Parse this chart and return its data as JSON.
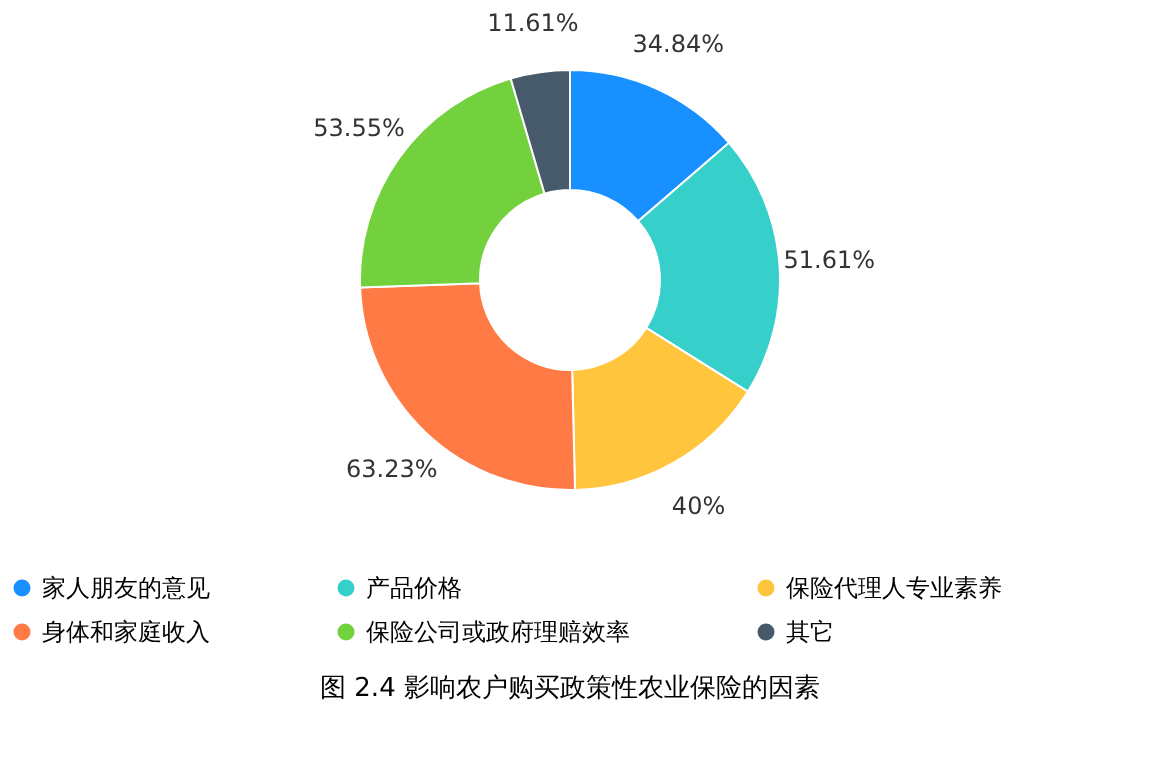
{
  "chart_data": {
    "type": "donut",
    "categories": [
      "家人朋友的意见",
      "产品价格",
      "保险代理人专业素养",
      "身体和家庭收入",
      "保险公司或政府理赔效率",
      "其它"
    ],
    "values": [
      34.84,
      51.61,
      40,
      63.23,
      53.55,
      11.61
    ],
    "value_labels": [
      "34.84%",
      "51.61%",
      "40%",
      "63.23%",
      "53.55%",
      "11.61%"
    ],
    "colors": [
      "#1890ff",
      "#36cfca",
      "#ffc53d",
      "#ff7a45",
      "#73d13d",
      "#475a6b"
    ],
    "legend": "bottom",
    "annotations": [
      "图 2.4  影响农户购买政策性农业保险的因素"
    ]
  }
}
